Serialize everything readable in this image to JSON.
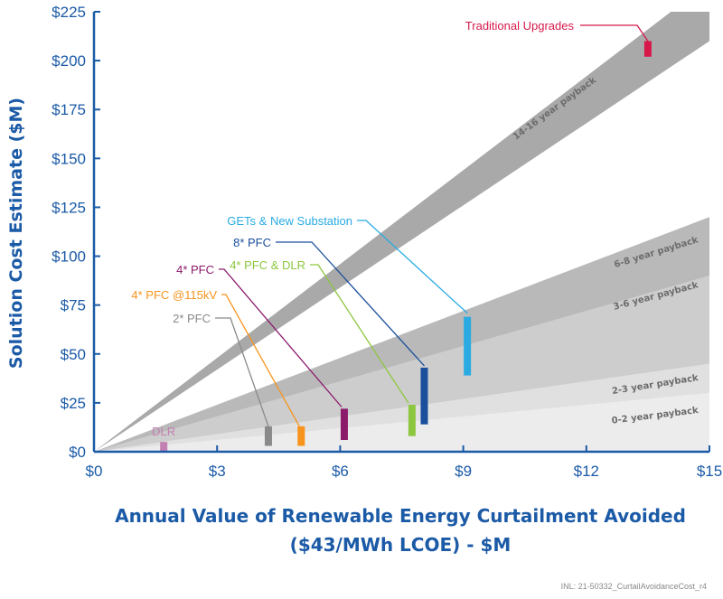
{
  "chart_data": {
    "type": "range-bar with shaded payback bands",
    "xlabel": "Annual Value of Renewable Energy Curtailment Avoided",
    "xlabel_line2": "($43/MWh LCOE) - $M",
    "ylabel": "Solution Cost Estimate ($M)",
    "xlim": [
      0,
      15
    ],
    "ylim": [
      0,
      225
    ],
    "x_ticks": [
      "$0",
      "$3",
      "$6",
      "$9",
      "$12",
      "$15"
    ],
    "x_tick_values": [
      0,
      3,
      6,
      9,
      12,
      15
    ],
    "y_ticks": [
      "$0",
      "$25",
      "$50",
      "$75",
      "$100",
      "$125",
      "$150",
      "$175",
      "$200",
      "$225"
    ],
    "y_tick_values": [
      0,
      25,
      50,
      75,
      100,
      125,
      150,
      175,
      200,
      225
    ],
    "grid": false,
    "bands": [
      {
        "label": "0-2 year payback",
        "min_years": 0,
        "max_years": 2,
        "color": "#ececec"
      },
      {
        "label": "2-3 year payback",
        "min_years": 2,
        "max_years": 3,
        "color": "#e0e0e0"
      },
      {
        "label": "3-6 year payback",
        "min_years": 3,
        "max_years": 6,
        "color": "#cdcdcd"
      },
      {
        "label": "6-8 year payback",
        "min_years": 6,
        "max_years": 8,
        "color": "#b9b9b9"
      },
      {
        "label": "14-16 year payback",
        "min_years": 14,
        "max_years": 16,
        "color": "#a9a9a9"
      }
    ],
    "solutions": [
      {
        "name": "DLR",
        "x": 1.7,
        "y_min": 0,
        "y_max": 5,
        "color": "#c47fb3"
      },
      {
        "name": "2* PFC",
        "x": 4.25,
        "y_min": 3,
        "y_max": 13,
        "color": "#8a8a8a"
      },
      {
        "name": "4* PFC @115kV",
        "x": 5.05,
        "y_min": 3,
        "y_max": 13,
        "color": "#f7941d"
      },
      {
        "name": "4* PFC",
        "x": 6.1,
        "y_min": 6,
        "y_max": 22,
        "color": "#8b1a6b"
      },
      {
        "name": "4* PFC & DLR",
        "x": 7.75,
        "y_min": 8,
        "y_max": 24,
        "color": "#8dc63f"
      },
      {
        "name": "8* PFC",
        "x": 8.05,
        "y_min": 14,
        "y_max": 43,
        "color": "#1a4f9c"
      },
      {
        "name": "GETs & New Substation",
        "x": 9.1,
        "y_min": 39,
        "y_max": 69,
        "color": "#29abe2"
      },
      {
        "name": "Traditional Upgrades",
        "x": 13.5,
        "y_min": 202,
        "y_max": 210,
        "color": "#d7194a"
      }
    ],
    "axis_color": "#1b5aa6"
  },
  "footnote": "INL: 21-50332_CurtailAvoidanceCost_r4"
}
